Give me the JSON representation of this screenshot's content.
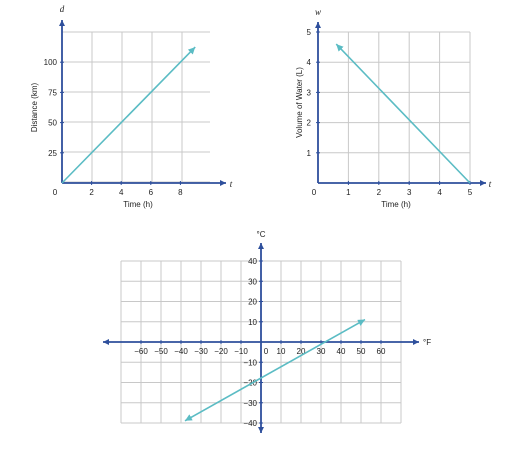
{
  "colors": {
    "grid": "#c8c8c8",
    "axis": "#2e4f9c",
    "line": "#5bbcc4",
    "text": "#222222"
  },
  "chart_data": [
    {
      "type": "line",
      "xlabel": "Time (h)",
      "ylabel": "Distance (km)",
      "x_var": "t",
      "y_var": "d",
      "origin_label": "0",
      "xlim": [
        0,
        10
      ],
      "ylim": [
        0,
        125
      ],
      "x_ticks": [
        2,
        4,
        6,
        8
      ],
      "y_ticks": [
        25,
        50,
        75,
        100
      ],
      "grid": true,
      "series": [
        {
          "x": [
            0,
            9
          ],
          "y": [
            0,
            112.5
          ],
          "arrow": "end"
        }
      ]
    },
    {
      "type": "line",
      "xlabel": "Time (h)",
      "ylabel": "Volume of Water (L)",
      "x_var": "t",
      "y_var": "w",
      "origin_label": "0",
      "xlim": [
        0,
        5
      ],
      "ylim": [
        0,
        5
      ],
      "x_ticks": [
        1,
        2,
        3,
        4,
        5
      ],
      "y_ticks": [
        1,
        2,
        3,
        4,
        5
      ],
      "grid": true,
      "series": [
        {
          "x": [
            0.6,
            5
          ],
          "y": [
            4.6,
            0
          ],
          "arrow": "start"
        }
      ]
    },
    {
      "type": "line",
      "xlabel": "",
      "ylabel": "",
      "x_unit": "°F",
      "y_unit": "°C",
      "xlim": [
        -70,
        70
      ],
      "ylim": [
        -40,
        40
      ],
      "x_ticks": [
        -60,
        -50,
        -40,
        -30,
        -20,
        -10,
        0,
        10,
        20,
        30,
        40,
        50,
        60
      ],
      "y_ticks": [
        -40,
        -30,
        -20,
        -10,
        10,
        20,
        30,
        40
      ],
      "grid": true,
      "series": [
        {
          "x": [
            -38,
            52
          ],
          "y": [
            -38.9,
            11.1
          ],
          "arrow": "both"
        }
      ]
    }
  ]
}
